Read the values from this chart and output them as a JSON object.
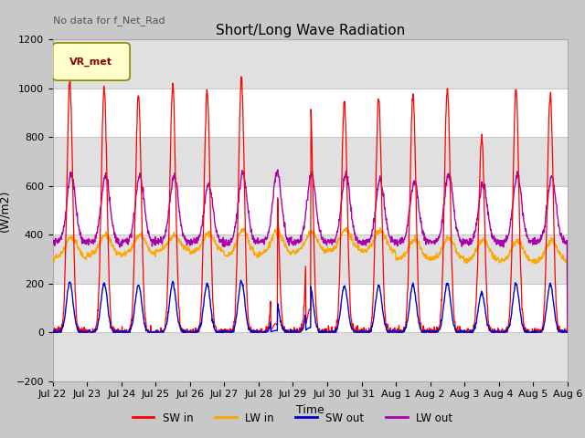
{
  "title": "Short/Long Wave Radiation",
  "xlabel": "Time",
  "ylabel": "(W/m2)",
  "ylim": [
    -200,
    1200
  ],
  "annotation": "No data for f_Net_Rad",
  "legend_label": "VR_met",
  "tick_labels": [
    "Jul 22",
    "Jul 23",
    "Jul 24",
    "Jul 25",
    "Jul 26",
    "Jul 27",
    "Jul 28",
    "Jul 29",
    "Jul 30",
    "Jul 31",
    "Aug 1",
    "Aug 2",
    "Aug 3",
    "Aug 4",
    "Aug 5",
    "Aug 6"
  ],
  "series": {
    "SW_in": {
      "color": "#ff0000",
      "label": "SW in"
    },
    "LW_in": {
      "color": "#ffa500",
      "label": "LW in"
    },
    "SW_out": {
      "color": "#0000cc",
      "label": "SW out"
    },
    "LW_out": {
      "color": "#aa00aa",
      "label": "LW out"
    }
  },
  "fig_bg": "#c8c8c8",
  "plot_bg": "#ffffff",
  "band_color": "#e0e0e0",
  "grid_color": "#c8c8c8",
  "title_fontsize": 11,
  "label_fontsize": 9,
  "tick_fontsize": 8,
  "n_days": 15,
  "peak_heights_sw": [
    1020,
    1000,
    975,
    1010,
    990,
    1040,
    700,
    950,
    940,
    960,
    975,
    1000,
    800,
    995,
    980
  ],
  "peak_heights_lw_out": [
    650,
    640,
    640,
    640,
    605,
    650,
    660,
    650,
    650,
    620,
    620,
    650,
    610,
    645,
    640
  ],
  "lw_in_base": [
    305,
    315,
    320,
    335,
    330,
    310,
    320,
    330,
    335,
    330,
    300,
    300,
    295,
    290,
    290
  ],
  "lw_in_peak": [
    390,
    400,
    400,
    395,
    405,
    420,
    415,
    410,
    420,
    415,
    380,
    385,
    375,
    375,
    375
  ]
}
